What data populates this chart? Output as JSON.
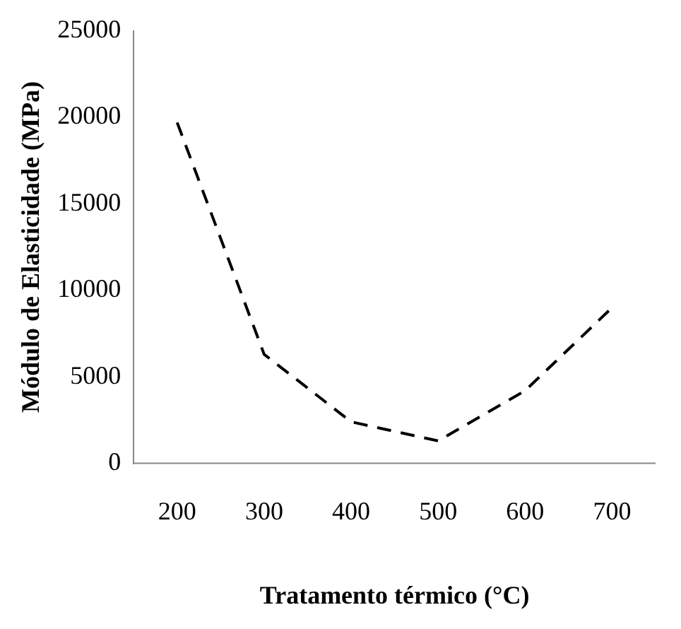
{
  "chart_data": {
    "type": "line",
    "xlabel": "Tratamento térmico (°C)",
    "ylabel": "Módulo de Elasticidade (MPa)",
    "categories": [
      "200",
      "300",
      "400",
      "500",
      "600",
      "700"
    ],
    "series": [
      {
        "color": "#000000",
        "values": [
          19700,
          6300,
          2400,
          1300,
          4200,
          9000
        ]
      }
    ],
    "ylim": [
      0,
      25000
    ],
    "yticks": [
      0,
      5000,
      10000,
      15000,
      20000,
      25000
    ],
    "grid": false,
    "legend": false,
    "marker": "none",
    "line_style": "dashed"
  }
}
